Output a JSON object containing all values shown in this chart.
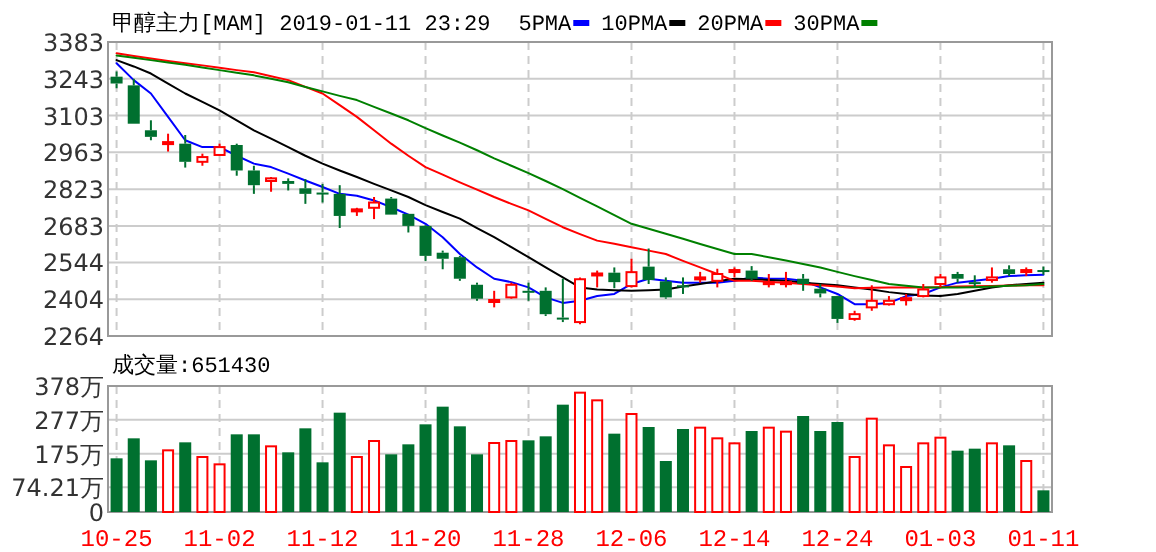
{
  "chart_data": [
    {
      "type": "candlestick",
      "title": "甲醇主力[MAM] 2019-01-11 23:29",
      "tick_labels": "y",
      "grid": true,
      "legend": "top",
      "categories": [
        null,
        null,
        null,
        null,
        null,
        null,
        null,
        null,
        null,
        null,
        null,
        null,
        null,
        null,
        null,
        null,
        null,
        null,
        null,
        null,
        null,
        null,
        null,
        null,
        null,
        null,
        null,
        null,
        null,
        null,
        null,
        null,
        null,
        null,
        null,
        null,
        null,
        null,
        null,
        null,
        null,
        null,
        null,
        null,
        null,
        null,
        null,
        null,
        null,
        null,
        null,
        null,
        null,
        null,
        null
      ],
      "ohlc": [
        [
          3251,
          3271,
          3207,
          3225
        ],
        [
          3218,
          3243,
          3072,
          3072
        ],
        [
          3047,
          3085,
          3009,
          3022
        ],
        [
          2996,
          3034,
          2966,
          3002
        ],
        [
          2996,
          3029,
          2905,
          2927
        ],
        [
          2927,
          2958,
          2912,
          2945
        ],
        [
          2953,
          2996,
          2950,
          2983
        ],
        [
          2991,
          2996,
          2874,
          2894
        ],
        [
          2894,
          2912,
          2805,
          2838
        ],
        [
          2854,
          2869,
          2813,
          2864
        ],
        [
          2854,
          2864,
          2818,
          2843
        ],
        [
          2826,
          2861,
          2767,
          2805
        ],
        [
          2810,
          2843,
          2772,
          2805
        ],
        [
          2805,
          2838,
          2675,
          2721
        ],
        [
          2741,
          2752,
          2721,
          2746
        ],
        [
          2752,
          2793,
          2709,
          2772
        ],
        [
          2787,
          2793,
          2726,
          2726
        ],
        [
          2729,
          2729,
          2658,
          2683
        ],
        [
          2683,
          2686,
          2549,
          2569
        ],
        [
          2581,
          2589,
          2518,
          2558
        ],
        [
          2564,
          2569,
          2474,
          2482
        ],
        [
          2459,
          2467,
          2398,
          2406
        ],
        [
          2396,
          2436,
          2373,
          2401
        ],
        [
          2411,
          2467,
          2406,
          2459
        ],
        [
          2436,
          2467,
          2398,
          2429
        ],
        [
          2436,
          2449,
          2340,
          2347
        ],
        [
          2334,
          2482,
          2317,
          2327
        ],
        [
          2317,
          2487,
          2309,
          2480
        ],
        [
          2497,
          2513,
          2449,
          2502
        ],
        [
          2505,
          2525,
          2446,
          2469
        ],
        [
          2454,
          2558,
          2449,
          2507
        ],
        [
          2528,
          2597,
          2462,
          2477
        ],
        [
          2472,
          2487,
          2406,
          2411
        ],
        [
          2457,
          2487,
          2424,
          2449
        ],
        [
          2482,
          2508,
          2467,
          2487
        ],
        [
          2474,
          2520,
          2449,
          2500
        ],
        [
          2510,
          2525,
          2487,
          2515
        ],
        [
          2513,
          2530,
          2474,
          2482
        ],
        [
          2464,
          2500,
          2449,
          2469
        ],
        [
          2464,
          2508,
          2449,
          2469
        ],
        [
          2482,
          2500,
          2436,
          2462
        ],
        [
          2444,
          2462,
          2411,
          2426
        ],
        [
          2416,
          2416,
          2314,
          2329
        ],
        [
          2329,
          2360,
          2322,
          2347
        ],
        [
          2373,
          2457,
          2360,
          2398
        ],
        [
          2385,
          2416,
          2380,
          2398
        ],
        [
          2403,
          2424,
          2380,
          2408
        ],
        [
          2416,
          2462,
          2411,
          2441
        ],
        [
          2462,
          2500,
          2449,
          2487
        ],
        [
          2500,
          2508,
          2467,
          2482
        ],
        [
          2469,
          2495,
          2449,
          2464
        ],
        [
          2477,
          2525,
          2467,
          2487
        ],
        [
          2518,
          2533,
          2492,
          2500
        ],
        [
          2510,
          2525,
          2492,
          2515
        ],
        [
          2515,
          2528,
          2497,
          2510
        ]
      ],
      "colors": [
        "#00702f",
        "#00702f",
        "#00702f",
        "#ff0000",
        "#00702f",
        "#ff0000",
        "#ff0000",
        "#00702f",
        "#00702f",
        "#ff0000",
        "#00702f",
        "#00702f",
        "#00702f",
        "#00702f",
        "#ff0000",
        "#ff0000",
        "#00702f",
        "#00702f",
        "#00702f",
        "#00702f",
        "#00702f",
        "#00702f",
        "#ff0000",
        "#ff0000",
        "#00702f",
        "#00702f",
        "#00702f",
        "#ff0000",
        "#ff0000",
        "#00702f",
        "#ff0000",
        "#00702f",
        "#00702f",
        "#00702f",
        "#ff0000",
        "#ff0000",
        "#ff0000",
        "#00702f",
        "#ff0000",
        "#ff0000",
        "#00702f",
        "#00702f",
        "#00702f",
        "#ff0000",
        "#ff0000",
        "#ff0000",
        "#ff0000",
        "#ff0000",
        "#ff0000",
        "#00702f",
        "#00702f",
        "#ff0000",
        "#00702f",
        "#ff0000",
        "#00702f"
      ],
      "series": [
        {
          "name": "5PMA",
          "type": "line",
          "color": "#0000ff",
          "values": [
            3302,
            3238,
            3187,
            3098,
            3009,
            2983,
            2983,
            2950,
            2920,
            2907,
            2882,
            2856,
            2831,
            2805,
            2798,
            2780,
            2754,
            2726,
            2691,
            2640,
            2576,
            2525,
            2482,
            2469,
            2449,
            2411,
            2390,
            2398,
            2416,
            2424,
            2462,
            2482,
            2474,
            2467,
            2467,
            2467,
            2474,
            2487,
            2482,
            2482,
            2474,
            2449,
            2424,
            2385,
            2385,
            2390,
            2416,
            2424,
            2449,
            2467,
            2474,
            2482,
            2492,
            2495,
            2497
          ]
        },
        {
          "name": "10PMA",
          "type": "line",
          "color": "#000000",
          "values": [
            3314,
            3290,
            3263,
            3225,
            3187,
            3155,
            3123,
            3085,
            3047,
            3015,
            2983,
            2950,
            2920,
            2894,
            2869,
            2843,
            2818,
            2793,
            2762,
            2736,
            2711,
            2675,
            2640,
            2602,
            2564,
            2525,
            2487,
            2449,
            2441,
            2438,
            2436,
            2438,
            2441,
            2452,
            2462,
            2472,
            2482,
            2480,
            2477,
            2474,
            2467,
            2462,
            2457,
            2449,
            2441,
            2431,
            2424,
            2418,
            2416,
            2424,
            2436,
            2449,
            2457,
            2462,
            2467
          ]
        },
        {
          "name": "20PMA",
          "type": "line",
          "color": "#ff0000",
          "values": [
            3340,
            3330,
            3320,
            3311,
            3302,
            3294,
            3285,
            3276,
            3268,
            3253,
            3238,
            3212,
            3187,
            3143,
            3098,
            3047,
            2996,
            2950,
            2907,
            2878,
            2849,
            2821,
            2793,
            2767,
            2742,
            2710,
            2678,
            2652,
            2627,
            2615,
            2602,
            2589,
            2576,
            2550,
            2525,
            2500,
            2474,
            2474,
            2470,
            2467,
            2462,
            2457,
            2452,
            2446,
            2448,
            2449,
            2449,
            2449,
            2450,
            2452,
            2453,
            2454,
            2456,
            2457,
            2457
          ]
        },
        {
          "name": "30PMA",
          "type": "line",
          "color": "#008000",
          "values": [
            3332,
            3323,
            3314,
            3305,
            3296,
            3286,
            3276,
            3266,
            3256,
            3243,
            3230,
            3212,
            3195,
            3178,
            3162,
            3136,
            3111,
            3085,
            3055,
            3027,
            3000,
            2971,
            2940,
            2912,
            2884,
            2854,
            2823,
            2790,
            2757,
            2724,
            2691,
            2672,
            2653,
            2634,
            2614,
            2595,
            2576,
            2576,
            2564,
            2551,
            2538,
            2525,
            2508,
            2492,
            2477,
            2462,
            2455,
            2449,
            2449,
            2449,
            2450,
            2452,
            2455,
            2457,
            2462
          ]
        }
      ],
      "ylim": [
        2264,
        3383
      ],
      "yticks": [
        2264,
        2404,
        2544,
        2683,
        2823,
        2963,
        3103,
        3243,
        3383
      ]
    },
    {
      "type": "bar",
      "title": "成交量:651430",
      "grid": true,
      "categories": [
        "10-25",
        null,
        null,
        null,
        null,
        null,
        "11-02",
        null,
        null,
        null,
        null,
        null,
        "11-12",
        null,
        null,
        null,
        null,
        null,
        "11-20",
        null,
        null,
        null,
        null,
        null,
        "11-28",
        null,
        null,
        null,
        null,
        null,
        "12-06",
        null,
        null,
        null,
        null,
        null,
        "12-14",
        null,
        null,
        null,
        null,
        null,
        "12-24",
        null,
        null,
        null,
        null,
        null,
        "01-03",
        null,
        null,
        null,
        null,
        null,
        "01-11"
      ],
      "values": [
        161,
        221,
        155,
        185,
        209,
        165,
        143,
        233,
        233,
        197,
        179,
        251,
        149,
        298,
        165,
        213,
        173,
        203,
        263,
        316,
        257,
        173,
        207,
        213,
        215,
        227,
        322,
        358,
        335,
        235,
        294,
        255,
        153,
        249,
        253,
        221,
        206,
        243,
        253,
        241,
        288,
        243,
        270,
        165,
        280,
        200,
        135,
        206,
        223,
        184,
        190,
        206,
        200,
        153,
        65
      ],
      "colors": [
        "#00702f",
        "#00702f",
        "#00702f",
        "#ff0000",
        "#00702f",
        "#ff0000",
        "#ff0000",
        "#00702f",
        "#00702f",
        "#ff0000",
        "#00702f",
        "#00702f",
        "#00702f",
        "#00702f",
        "#ff0000",
        "#ff0000",
        "#00702f",
        "#00702f",
        "#00702f",
        "#00702f",
        "#00702f",
        "#00702f",
        "#ff0000",
        "#ff0000",
        "#00702f",
        "#00702f",
        "#00702f",
        "#ff0000",
        "#ff0000",
        "#00702f",
        "#ff0000",
        "#00702f",
        "#00702f",
        "#00702f",
        "#ff0000",
        "#ff0000",
        "#ff0000",
        "#00702f",
        "#ff0000",
        "#ff0000",
        "#00702f",
        "#00702f",
        "#00702f",
        "#ff0000",
        "#ff0000",
        "#ff0000",
        "#ff0000",
        "#ff0000",
        "#ff0000",
        "#00702f",
        "#00702f",
        "#ff0000",
        "#00702f",
        "#ff0000",
        "#00702f"
      ],
      "ylim": [
        0,
        378
      ],
      "yticks": [
        0,
        {
          "value": 74.21,
          "label": "74.21万"
        },
        {
          "value": 175,
          "label": "175万"
        },
        {
          "value": 277,
          "label": "277万"
        },
        {
          "value": 378,
          "label": "378万"
        }
      ]
    }
  ]
}
